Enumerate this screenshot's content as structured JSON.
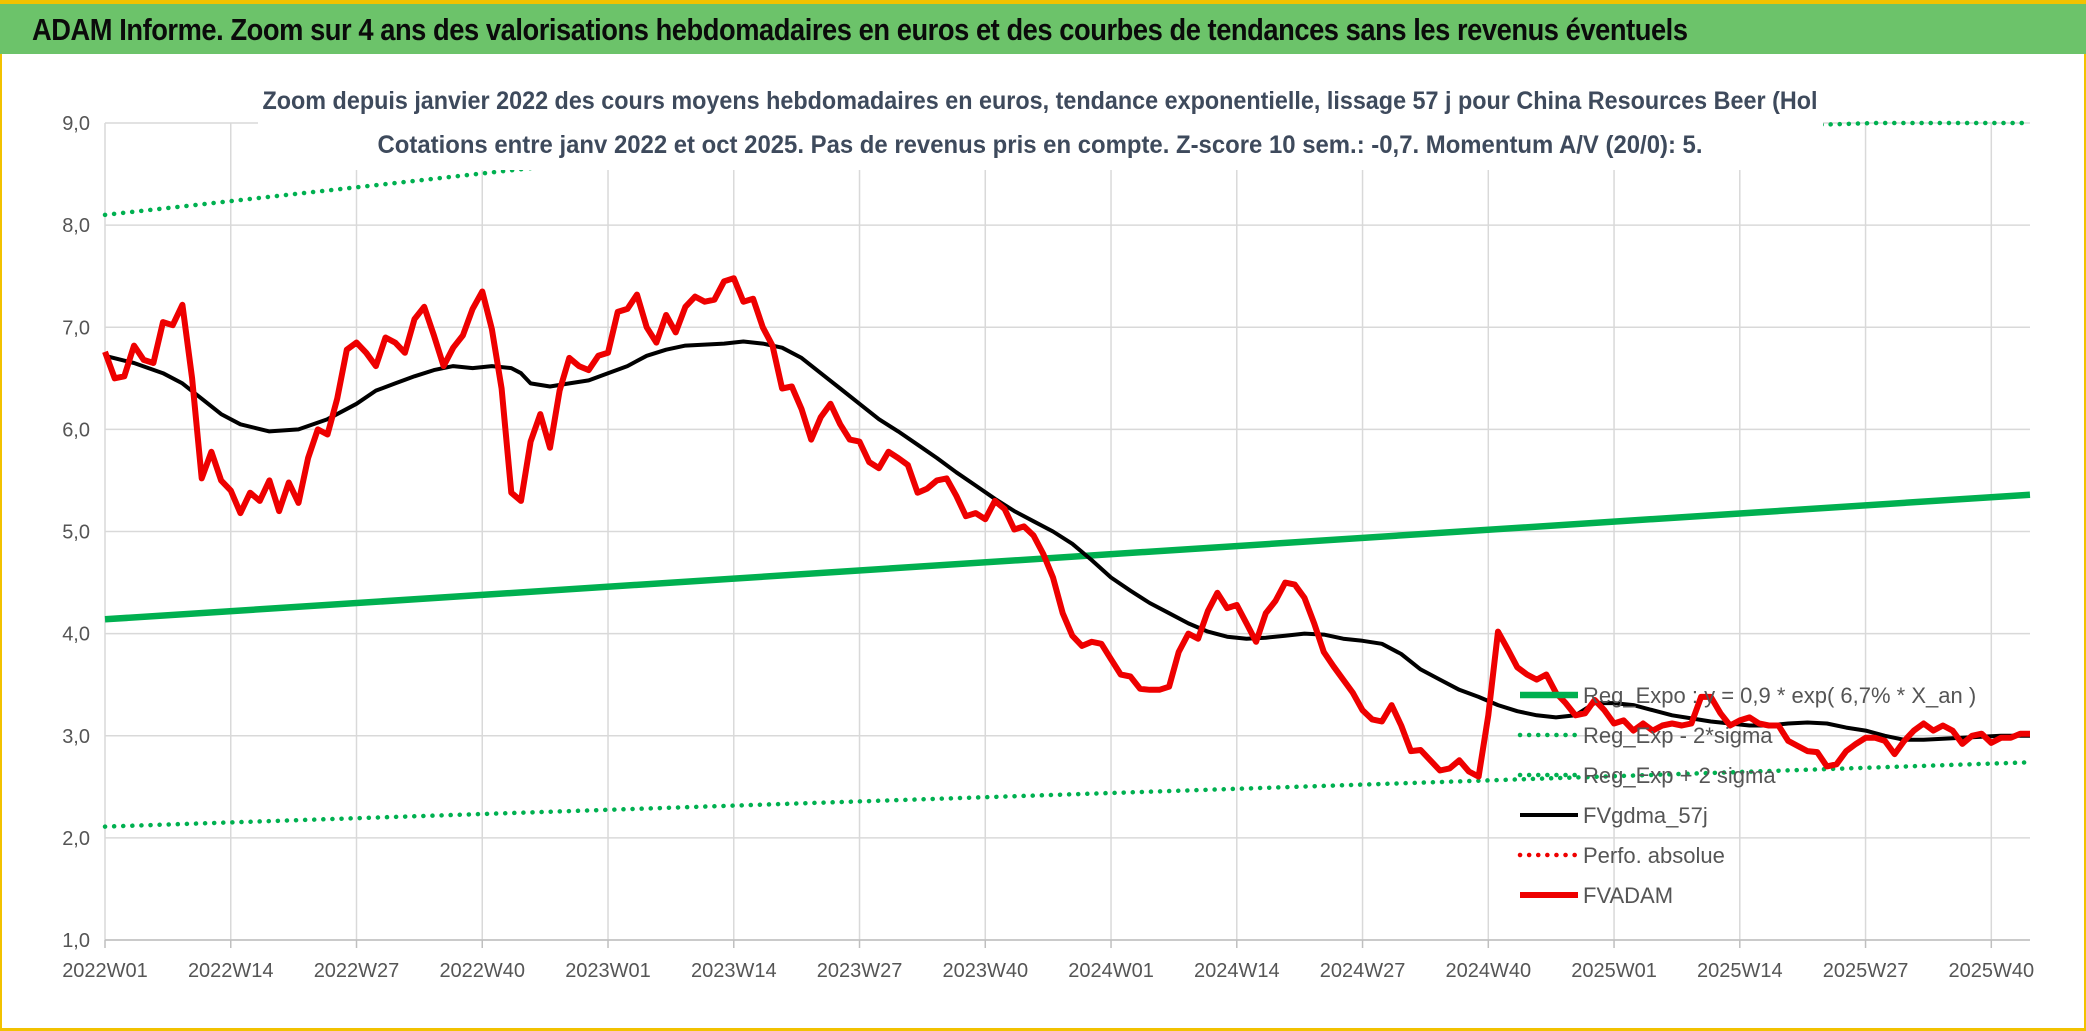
{
  "header": {
    "title": "ADAM Informe. Zoom sur 4 ans des valorisations hebdomadaires en euros et des courbes de tendances sans les revenus éventuels"
  },
  "colors": {
    "header_bg": "#6cc36a",
    "frame": "#f2c200",
    "trend": "#00b050",
    "fvadam": "#ee0000",
    "fvgdma": "#000000",
    "grid": "#d9d9d9"
  },
  "chart_data": {
    "type": "line",
    "title_line1": "Zoom depuis janvier 2022 des cours moyens hebdomadaires en euros, tendance exponentielle, lissage 57 j pour China Resources Beer (Hol",
    "title_line2": "Cotations entre janv 2022 et oct 2025. Pas de revenus pris en compte. Z-score 10 sem.: -0,7. Momentum A/V (20/0): 5.",
    "xlabel": "",
    "ylabel": "",
    "ylim": [
      1.0,
      9.0
    ],
    "y_ticks": [
      "1,0",
      "2,0",
      "3,0",
      "4,0",
      "5,0",
      "6,0",
      "7,0",
      "8,0",
      "9,0"
    ],
    "x_ticks": [
      "2022W01",
      "2022W14",
      "2022W27",
      "2022W40",
      "2023W01",
      "2023W14",
      "2023W27",
      "2023W40",
      "2024W01",
      "2024W14",
      "2024W27",
      "2024W40",
      "2025W01",
      "2025W14",
      "2025W27",
      "2025W40"
    ],
    "x_range_weeks": [
      0,
      199
    ],
    "grid": true,
    "legend_position": "bottom-right",
    "series": [
      {
        "name": "Reg_Expo : y = 0,9 * exp( 6,7% *  X_an )",
        "style": "solid-thick",
        "color": "#00b050",
        "points": [
          [
            0,
            4.14
          ],
          [
            199,
            5.36
          ]
        ]
      },
      {
        "name": "Reg_Exp - 2*sigma",
        "style": "dotted",
        "color": "#00b050",
        "points": [
          [
            0,
            2.11
          ],
          [
            199,
            2.74
          ]
        ]
      },
      {
        "name": "Reg_Exp + 2 sigma",
        "style": "dotted",
        "color": "#00b050",
        "points": [
          [
            0,
            8.1
          ],
          [
            48,
            8.6
          ],
          [
            183,
            9.0
          ],
          [
            199,
            9.0
          ]
        ]
      },
      {
        "name": "FVgdma_57j",
        "style": "solid",
        "color": "#000000",
        "points": [
          [
            0,
            6.72
          ],
          [
            3,
            6.65
          ],
          [
            6,
            6.55
          ],
          [
            8,
            6.45
          ],
          [
            10,
            6.3
          ],
          [
            12,
            6.15
          ],
          [
            14,
            6.05
          ],
          [
            17,
            5.98
          ],
          [
            20,
            6.0
          ],
          [
            23,
            6.1
          ],
          [
            26,
            6.25
          ],
          [
            28,
            6.38
          ],
          [
            30,
            6.45
          ],
          [
            32,
            6.52
          ],
          [
            34,
            6.58
          ],
          [
            36,
            6.62
          ],
          [
            38,
            6.6
          ],
          [
            40,
            6.62
          ],
          [
            42,
            6.6
          ],
          [
            43,
            6.55
          ],
          [
            44,
            6.45
          ],
          [
            46,
            6.42
          ],
          [
            48,
            6.45
          ],
          [
            50,
            6.48
          ],
          [
            52,
            6.55
          ],
          [
            54,
            6.62
          ],
          [
            56,
            6.72
          ],
          [
            58,
            6.78
          ],
          [
            60,
            6.82
          ],
          [
            62,
            6.83
          ],
          [
            64,
            6.84
          ],
          [
            66,
            6.86
          ],
          [
            68,
            6.84
          ],
          [
            70,
            6.8
          ],
          [
            72,
            6.7
          ],
          [
            74,
            6.55
          ],
          [
            76,
            6.4
          ],
          [
            78,
            6.25
          ],
          [
            80,
            6.1
          ],
          [
            82,
            5.98
          ],
          [
            84,
            5.85
          ],
          [
            86,
            5.72
          ],
          [
            88,
            5.58
          ],
          [
            90,
            5.45
          ],
          [
            92,
            5.32
          ],
          [
            94,
            5.2
          ],
          [
            96,
            5.1
          ],
          [
            98,
            5.0
          ],
          [
            100,
            4.88
          ],
          [
            102,
            4.72
          ],
          [
            104,
            4.55
          ],
          [
            106,
            4.42
          ],
          [
            108,
            4.3
          ],
          [
            110,
            4.2
          ],
          [
            112,
            4.1
          ],
          [
            114,
            4.02
          ],
          [
            116,
            3.97
          ],
          [
            118,
            3.95
          ],
          [
            120,
            3.96
          ],
          [
            122,
            3.98
          ],
          [
            124,
            4.0
          ],
          [
            126,
            3.99
          ],
          [
            128,
            3.95
          ],
          [
            130,
            3.93
          ],
          [
            132,
            3.9
          ],
          [
            134,
            3.8
          ],
          [
            136,
            3.65
          ],
          [
            138,
            3.55
          ],
          [
            140,
            3.45
          ],
          [
            142,
            3.38
          ],
          [
            144,
            3.3
          ],
          [
            146,
            3.24
          ],
          [
            148,
            3.2
          ],
          [
            150,
            3.18
          ],
          [
            152,
            3.2
          ],
          [
            154,
            3.32
          ],
          [
            156,
            3.32
          ],
          [
            158,
            3.3
          ],
          [
            160,
            3.25
          ],
          [
            162,
            3.2
          ],
          [
            164,
            3.17
          ],
          [
            166,
            3.14
          ],
          [
            168,
            3.12
          ],
          [
            170,
            3.1
          ],
          [
            172,
            3.1
          ],
          [
            174,
            3.12
          ],
          [
            176,
            3.13
          ],
          [
            178,
            3.12
          ],
          [
            180,
            3.08
          ],
          [
            182,
            3.05
          ],
          [
            184,
            3.0
          ],
          [
            186,
            2.96
          ],
          [
            188,
            2.96
          ],
          [
            190,
            2.97
          ],
          [
            192,
            2.98
          ],
          [
            194,
            2.99
          ],
          [
            196,
            3.0
          ],
          [
            199,
            3.0
          ]
        ]
      },
      {
        "name": "Perfo. absolue",
        "style": "dotted",
        "color": "#ee0000",
        "points": []
      },
      {
        "name": "FVADAM",
        "style": "solid-thick",
        "color": "#ee0000",
        "points": [
          [
            0,
            6.76
          ],
          [
            1,
            6.5
          ],
          [
            2,
            6.52
          ],
          [
            3,
            6.82
          ],
          [
            4,
            6.68
          ],
          [
            5,
            6.65
          ],
          [
            6,
            7.05
          ],
          [
            7,
            7.02
          ],
          [
            8,
            7.22
          ],
          [
            9,
            6.5
          ],
          [
            10,
            5.52
          ],
          [
            11,
            5.78
          ],
          [
            12,
            5.5
          ],
          [
            13,
            5.4
          ],
          [
            14,
            5.18
          ],
          [
            15,
            5.38
          ],
          [
            16,
            5.3
          ],
          [
            17,
            5.5
          ],
          [
            18,
            5.2
          ],
          [
            19,
            5.48
          ],
          [
            20,
            5.28
          ],
          [
            21,
            5.72
          ],
          [
            22,
            6.0
          ],
          [
            23,
            5.95
          ],
          [
            24,
            6.3
          ],
          [
            25,
            6.78
          ],
          [
            26,
            6.85
          ],
          [
            27,
            6.75
          ],
          [
            28,
            6.62
          ],
          [
            29,
            6.9
          ],
          [
            30,
            6.85
          ],
          [
            31,
            6.75
          ],
          [
            32,
            7.08
          ],
          [
            33,
            7.2
          ],
          [
            34,
            6.92
          ],
          [
            35,
            6.62
          ],
          [
            36,
            6.8
          ],
          [
            37,
            6.92
          ],
          [
            38,
            7.18
          ],
          [
            39,
            7.35
          ],
          [
            40,
            6.98
          ],
          [
            41,
            6.4
          ],
          [
            42,
            5.38
          ],
          [
            43,
            5.3
          ],
          [
            44,
            5.88
          ],
          [
            45,
            6.15
          ],
          [
            46,
            5.82
          ],
          [
            47,
            6.38
          ],
          [
            48,
            6.7
          ],
          [
            49,
            6.62
          ],
          [
            50,
            6.58
          ],
          [
            51,
            6.72
          ],
          [
            52,
            6.75
          ],
          [
            53,
            7.15
          ],
          [
            54,
            7.18
          ],
          [
            55,
            7.32
          ],
          [
            56,
            7.0
          ],
          [
            57,
            6.85
          ],
          [
            58,
            7.12
          ],
          [
            59,
            6.95
          ],
          [
            60,
            7.2
          ],
          [
            61,
            7.3
          ],
          [
            62,
            7.25
          ],
          [
            63,
            7.27
          ],
          [
            64,
            7.45
          ],
          [
            65,
            7.48
          ],
          [
            66,
            7.25
          ],
          [
            67,
            7.28
          ],
          [
            68,
            7.0
          ],
          [
            69,
            6.82
          ],
          [
            70,
            6.4
          ],
          [
            71,
            6.42
          ],
          [
            72,
            6.2
          ],
          [
            73,
            5.9
          ],
          [
            74,
            6.12
          ],
          [
            75,
            6.25
          ],
          [
            76,
            6.05
          ],
          [
            77,
            5.9
          ],
          [
            78,
            5.88
          ],
          [
            79,
            5.68
          ],
          [
            80,
            5.62
          ],
          [
            81,
            5.78
          ],
          [
            82,
            5.72
          ],
          [
            83,
            5.65
          ],
          [
            84,
            5.38
          ],
          [
            85,
            5.42
          ],
          [
            86,
            5.5
          ],
          [
            87,
            5.52
          ],
          [
            88,
            5.35
          ],
          [
            89,
            5.15
          ],
          [
            90,
            5.18
          ],
          [
            91,
            5.12
          ],
          [
            92,
            5.3
          ],
          [
            93,
            5.22
          ],
          [
            94,
            5.02
          ],
          [
            95,
            5.05
          ],
          [
            96,
            4.96
          ],
          [
            97,
            4.78
          ],
          [
            98,
            4.55
          ],
          [
            99,
            4.2
          ],
          [
            100,
            3.98
          ],
          [
            101,
            3.88
          ],
          [
            102,
            3.92
          ],
          [
            103,
            3.9
          ],
          [
            104,
            3.75
          ],
          [
            105,
            3.6
          ],
          [
            106,
            3.58
          ],
          [
            107,
            3.46
          ],
          [
            108,
            3.45
          ],
          [
            109,
            3.45
          ],
          [
            110,
            3.48
          ],
          [
            111,
            3.82
          ],
          [
            112,
            4.0
          ],
          [
            113,
            3.95
          ],
          [
            114,
            4.22
          ],
          [
            115,
            4.4
          ],
          [
            116,
            4.25
          ],
          [
            117,
            4.28
          ],
          [
            118,
            4.1
          ],
          [
            119,
            3.92
          ],
          [
            120,
            4.2
          ],
          [
            121,
            4.32
          ],
          [
            122,
            4.5
          ],
          [
            123,
            4.48
          ],
          [
            124,
            4.35
          ],
          [
            125,
            4.1
          ],
          [
            126,
            3.82
          ],
          [
            127,
            3.68
          ],
          [
            128,
            3.55
          ],
          [
            129,
            3.42
          ],
          [
            130,
            3.25
          ],
          [
            131,
            3.16
          ],
          [
            132,
            3.14
          ],
          [
            133,
            3.3
          ],
          [
            134,
            3.1
          ],
          [
            135,
            2.85
          ],
          [
            136,
            2.86
          ],
          [
            137,
            2.76
          ],
          [
            138,
            2.66
          ],
          [
            139,
            2.68
          ],
          [
            140,
            2.76
          ],
          [
            141,
            2.65
          ],
          [
            142,
            2.6
          ],
          [
            143,
            3.2
          ],
          [
            144,
            4.02
          ],
          [
            145,
            3.85
          ],
          [
            146,
            3.67
          ],
          [
            147,
            3.6
          ],
          [
            148,
            3.55
          ],
          [
            149,
            3.6
          ],
          [
            150,
            3.42
          ],
          [
            151,
            3.32
          ],
          [
            152,
            3.2
          ],
          [
            153,
            3.22
          ],
          [
            154,
            3.35
          ],
          [
            155,
            3.25
          ],
          [
            156,
            3.12
          ],
          [
            157,
            3.15
          ],
          [
            158,
            3.05
          ],
          [
            159,
            3.12
          ],
          [
            160,
            3.05
          ],
          [
            161,
            3.1
          ],
          [
            162,
            3.12
          ],
          [
            163,
            3.1
          ],
          [
            164,
            3.12
          ],
          [
            165,
            3.38
          ],
          [
            166,
            3.38
          ],
          [
            167,
            3.22
          ],
          [
            168,
            3.1
          ],
          [
            169,
            3.15
          ],
          [
            170,
            3.18
          ],
          [
            171,
            3.12
          ],
          [
            172,
            3.1
          ],
          [
            173,
            3.1
          ],
          [
            174,
            2.95
          ],
          [
            175,
            2.9
          ],
          [
            176,
            2.85
          ],
          [
            177,
            2.84
          ],
          [
            178,
            2.7
          ],
          [
            179,
            2.72
          ],
          [
            180,
            2.85
          ],
          [
            181,
            2.92
          ],
          [
            182,
            2.98
          ],
          [
            183,
            2.98
          ],
          [
            184,
            2.95
          ],
          [
            185,
            2.82
          ],
          [
            186,
            2.95
          ],
          [
            187,
            3.05
          ],
          [
            188,
            3.12
          ],
          [
            189,
            3.05
          ],
          [
            190,
            3.1
          ],
          [
            191,
            3.05
          ],
          [
            192,
            2.92
          ],
          [
            193,
            3.0
          ],
          [
            194,
            3.02
          ],
          [
            195,
            2.93
          ],
          [
            196,
            2.98
          ],
          [
            197,
            2.98
          ],
          [
            198,
            3.02
          ],
          [
            199,
            3.02
          ]
        ]
      }
    ]
  }
}
